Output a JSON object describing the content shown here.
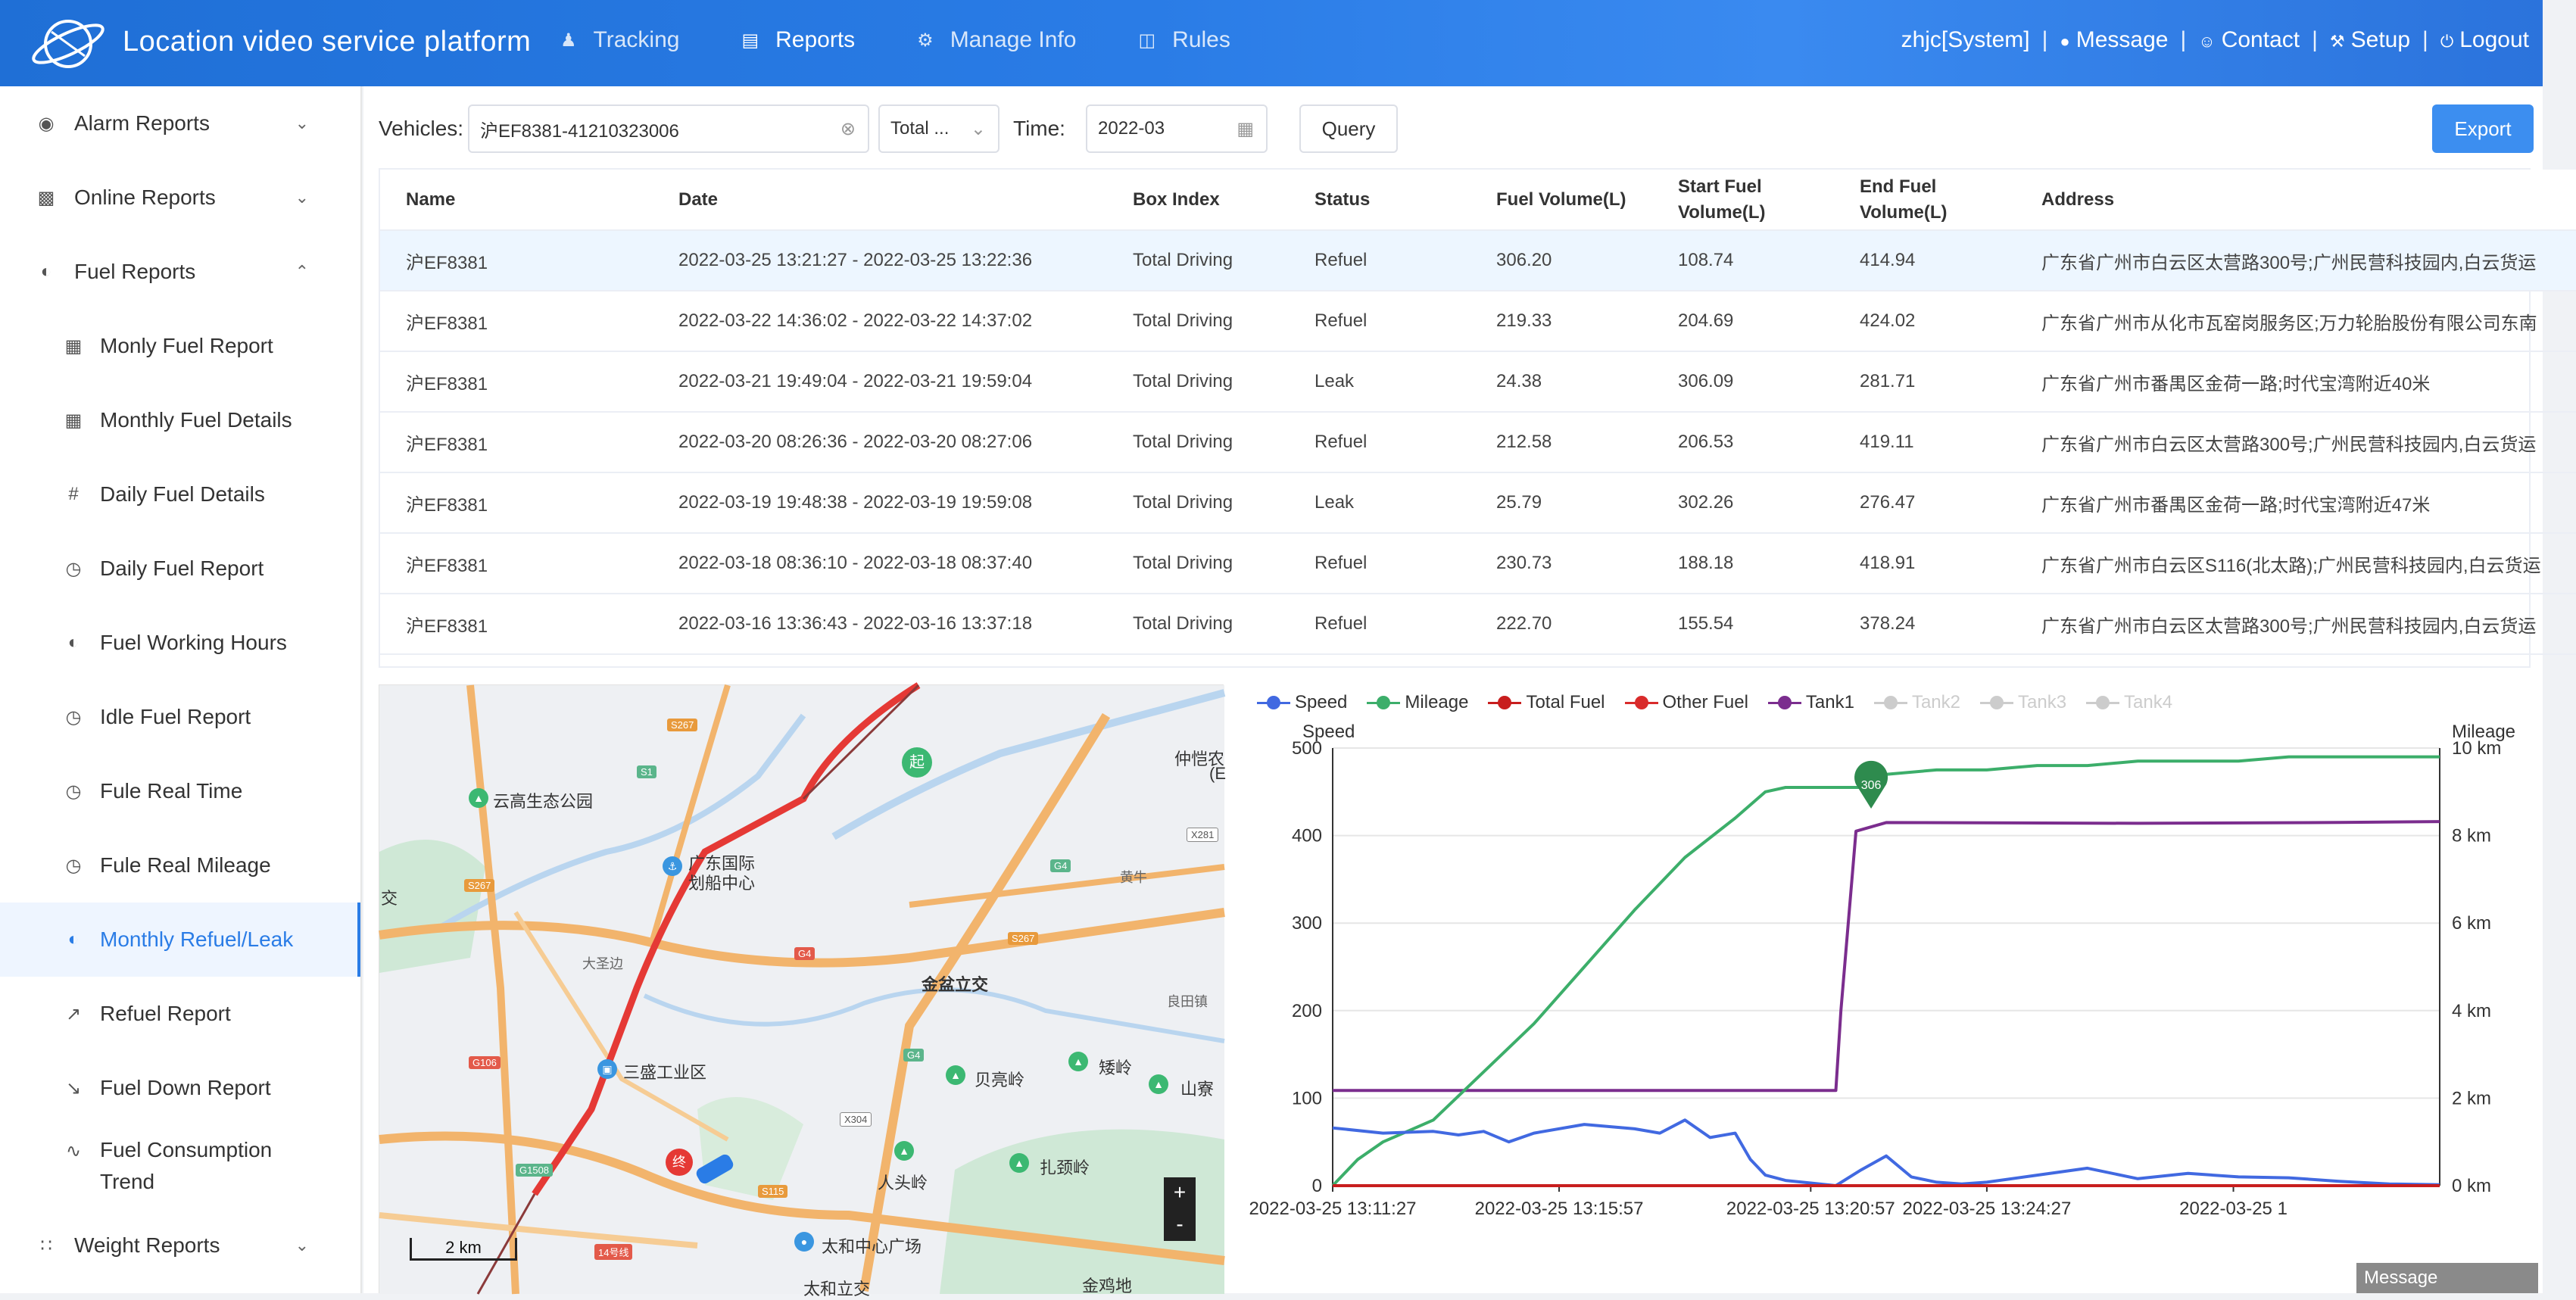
{
  "header": {
    "title": "Location video service platform",
    "nav": [
      {
        "label": "Tracking",
        "icon": "people-icon"
      },
      {
        "label": "Reports",
        "icon": "document-icon"
      },
      {
        "label": "Manage Info",
        "icon": "gear-icon"
      },
      {
        "label": "Rules",
        "icon": "book-icon"
      }
    ],
    "user": "zhjc[System]",
    "message": "Message",
    "contact": "Contact",
    "setup": "Setup",
    "logout": "Logout",
    "sep": "|"
  },
  "sidebar": {
    "groups": [
      {
        "label": "Alarm Reports"
      },
      {
        "label": "Online Reports"
      },
      {
        "label": "Fuel Reports"
      },
      {
        "label": "Weight Reports"
      }
    ],
    "items": [
      {
        "label": "Monly Fuel Report"
      },
      {
        "label": "Monthly Fuel Details"
      },
      {
        "label": "Daily Fuel Details"
      },
      {
        "label": "Daily Fuel Report"
      },
      {
        "label": "Fuel Working Hours"
      },
      {
        "label": "Idle Fuel Report"
      },
      {
        "label": "Fule Real Time"
      },
      {
        "label": "Fule Real Mileage"
      },
      {
        "label": "Monthly Refuel/Leak"
      },
      {
        "label": "Refuel Report"
      },
      {
        "label": "Fuel Down Report"
      },
      {
        "label": "Fuel Consumption Trend"
      }
    ]
  },
  "filters": {
    "vehicles_label": "Vehicles:",
    "vehicle_value": "沪EF8381-41210323006",
    "type_value": "Total ...",
    "time_label": "Time:",
    "time_value": "2022-03",
    "query": "Query",
    "export": "Export"
  },
  "table": {
    "columns": [
      "Name",
      "Date",
      "Box Index",
      "Status",
      "Fuel Volume(L)",
      "Start Fuel Volume(L)",
      "End Fuel Volume(L)",
      "Address"
    ],
    "rows": [
      [
        "沪EF8381",
        "2022-03-25 13:21:27 - 2022-03-25 13:22:36",
        "Total Driving",
        "Refuel",
        "306.20",
        "108.74",
        "414.94",
        "广东省广州市白云区太营路300号;广州民营科技园内,白云货运"
      ],
      [
        "沪EF8381",
        "2022-03-22 14:36:02 - 2022-03-22 14:37:02",
        "Total Driving",
        "Refuel",
        "219.33",
        "204.69",
        "424.02",
        "广东省广州市从化市瓦窑岗服务区;万力轮胎股份有限公司东南"
      ],
      [
        "沪EF8381",
        "2022-03-21 19:49:04 - 2022-03-21 19:59:04",
        "Total Driving",
        "Leak",
        "24.38",
        "306.09",
        "281.71",
        "广东省广州市番禺区金荷一路;时代宝湾附近40米"
      ],
      [
        "沪EF8381",
        "2022-03-20 08:26:36 - 2022-03-20 08:27:06",
        "Total Driving",
        "Refuel",
        "212.58",
        "206.53",
        "419.11",
        "广东省广州市白云区太营路300号;广州民营科技园内,白云货运"
      ],
      [
        "沪EF8381",
        "2022-03-19 19:48:38 - 2022-03-19 19:59:08",
        "Total Driving",
        "Leak",
        "25.79",
        "302.26",
        "276.47",
        "广东省广州市番禺区金荷一路;时代宝湾附近47米"
      ],
      [
        "沪EF8381",
        "2022-03-18 08:36:10 - 2022-03-18 08:37:40",
        "Total Driving",
        "Refuel",
        "230.73",
        "188.18",
        "418.91",
        "广东省广州市白云区S116(北太路);广州民营科技园内,白云货运"
      ],
      [
        "沪EF8381",
        "2022-03-16 13:36:43 - 2022-03-16 13:37:18",
        "Total Driving",
        "Refuel",
        "222.70",
        "155.54",
        "378.24",
        "广东省广州市白云区太营路300号;广州民营科技园内,白云货运"
      ]
    ]
  },
  "map": {
    "labels": [
      {
        "text": "云高生态公园"
      },
      {
        "text": "广东国际"
      },
      {
        "text": "划船中心"
      },
      {
        "text": "仲恺农"
      },
      {
        "text": "(E"
      },
      {
        "text": "黄牛"
      },
      {
        "text": "大圣边"
      },
      {
        "text": "金盆立交"
      },
      {
        "text": "良田镇"
      },
      {
        "text": "三盛工业区"
      },
      {
        "text": "贝亮岭"
      },
      {
        "text": "矮岭"
      },
      {
        "text": "山寮"
      },
      {
        "text": "人头岭"
      },
      {
        "text": "扎颈岭"
      },
      {
        "text": "太和中心广场"
      },
      {
        "text": "太和立交"
      },
      {
        "text": "金鸡地"
      },
      {
        "text": "交"
      }
    ],
    "road_tags": [
      "S267",
      "S1",
      "S267",
      "X281",
      "G4",
      "G4",
      "S267",
      "G106",
      "G4",
      "X304",
      "G1508",
      "S115",
      "14号线"
    ],
    "scale": "2 km",
    "zoom_in": "+",
    "zoom_out": "-",
    "start_marker": "起",
    "end_marker": "终"
  },
  "chart_data": {
    "type": "line",
    "legend": [
      {
        "name": "Speed",
        "color": "#4169e1",
        "on": true
      },
      {
        "name": "Mileage",
        "color": "#3cae6a",
        "on": true
      },
      {
        "name": "Total Fuel",
        "color": "#c81e1e",
        "on": true
      },
      {
        "name": "Other Fuel",
        "color": "#d92b2b",
        "on": true
      },
      {
        "name": "Tank1",
        "color": "#7b2d8e",
        "on": true
      },
      {
        "name": "Tank2",
        "color": "#cccccc",
        "on": false
      },
      {
        "name": "Tank3",
        "color": "#cccccc",
        "on": false
      },
      {
        "name": "Tank4",
        "color": "#cccccc",
        "on": false
      }
    ],
    "ylabel_left": "Speed",
    "ylabel_right": "Mileage",
    "y_left_ticks": [
      0,
      100,
      200,
      300,
      400,
      500
    ],
    "y_right_ticks": [
      "0 km",
      "2 km",
      "4 km",
      "6 km",
      "8 km",
      "10 km"
    ],
    "x_ticks": [
      "2022-03-25 13:11:27",
      "2022-03-25 13:15:57",
      "2022-03-25 13:20:57",
      "2022-03-25 13:24:27",
      "2022-03-25 1"
    ],
    "ylim_left": [
      0,
      500
    ],
    "ylim_right": [
      0,
      10
    ],
    "x_minutes_range": [
      0,
      22
    ],
    "marker_value": "306",
    "series": [
      {
        "name": "Tank1",
        "axis": "left",
        "x": [
          0,
          10,
          10.1,
          10.4,
          11,
          16,
          20,
          22
        ],
        "y": [
          108.7,
          108.7,
          200,
          405,
          414.9,
          414,
          415,
          416
        ]
      },
      {
        "name": "Mileage",
        "axis": "right",
        "x": [
          0,
          0.5,
          1,
          1.5,
          2,
          3,
          4,
          5,
          6,
          7,
          8,
          8.6,
          9,
          9.5,
          10,
          10.7,
          11,
          12,
          13,
          14,
          15,
          16,
          17,
          18,
          19,
          20,
          21,
          22
        ],
        "y": [
          0,
          0.6,
          1.0,
          1.25,
          1.5,
          2.6,
          3.7,
          5.0,
          6.3,
          7.5,
          8.4,
          9.0,
          9.1,
          9.1,
          9.1,
          9.1,
          9.4,
          9.5,
          9.5,
          9.6,
          9.6,
          9.7,
          9.7,
          9.7,
          9.8,
          9.8,
          9.8,
          9.8
        ]
      },
      {
        "name": "Speed",
        "axis": "left",
        "x": [
          0,
          1,
          2,
          2.5,
          3,
          3.5,
          4,
          5,
          6,
          6.5,
          7,
          7.5,
          8,
          8.3,
          8.6,
          9,
          9.5,
          10,
          10.5,
          11,
          11.5,
          12,
          12.5,
          13,
          14,
          15,
          16,
          17,
          18,
          19,
          20,
          21,
          22
        ],
        "y": [
          66,
          60,
          62,
          58,
          62,
          50,
          60,
          70,
          65,
          60,
          75,
          55,
          60,
          30,
          12,
          6,
          3,
          0,
          18,
          34,
          10,
          4,
          2,
          4,
          12,
          20,
          8,
          14,
          10,
          9,
          5,
          2,
          1
        ]
      },
      {
        "name": "Total Fuel",
        "axis": "left",
        "x": [
          0,
          22
        ],
        "y": [
          0,
          0
        ]
      }
    ]
  }
}
